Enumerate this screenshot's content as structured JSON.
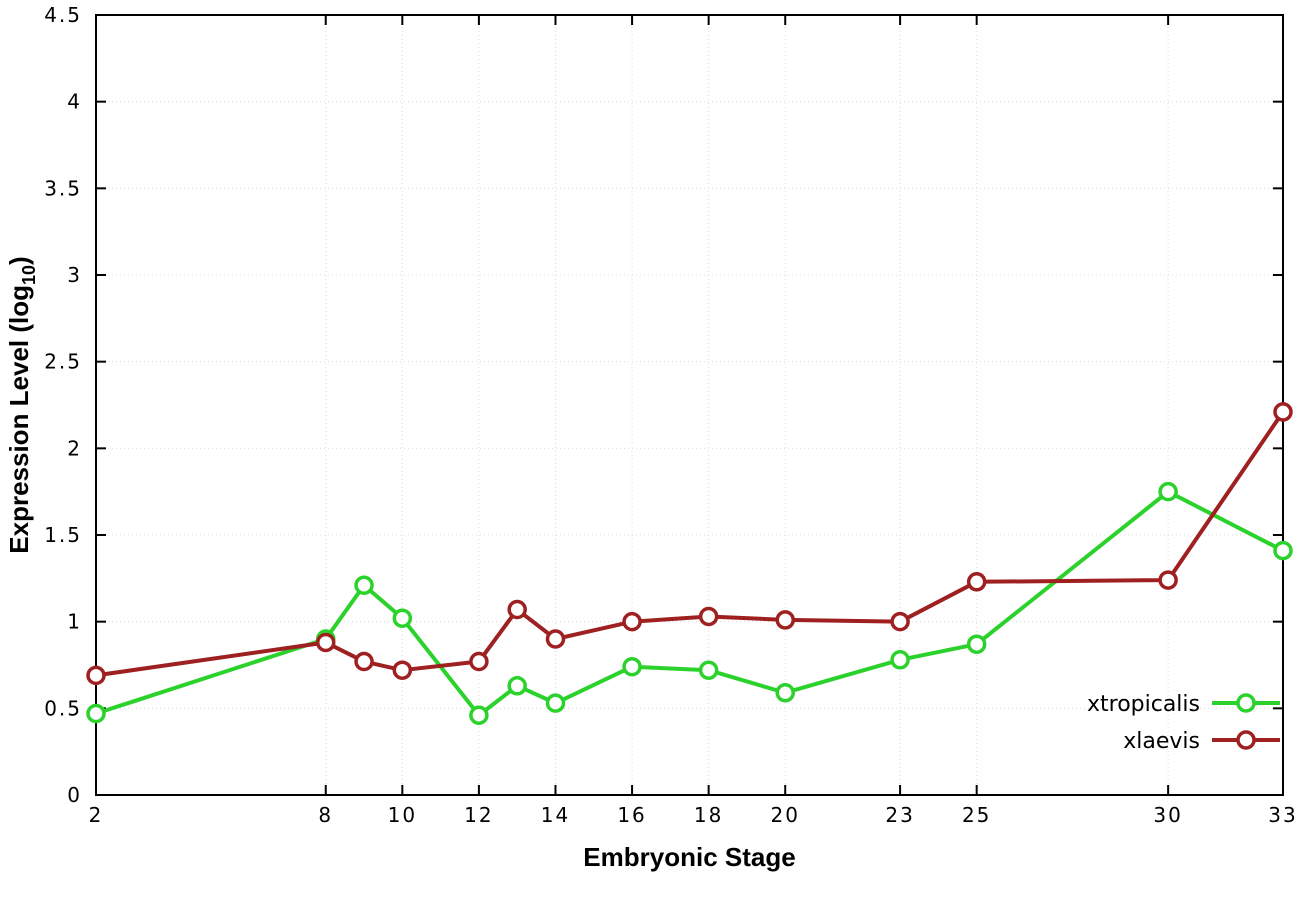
{
  "colors": {
    "background": "#ffffff",
    "border": "#000000",
    "grid": "#dcdcdc",
    "text": "#000000",
    "xtropicalis": "#2bd22b",
    "xlaevis": "#9e2020"
  },
  "chart_data": {
    "type": "line",
    "title": "",
    "xlabel": "Embryonic Stage",
    "ylabel_prefix": "Expression Level (log",
    "ylabel_sub": "10",
    "ylabel_suffix": ")",
    "xlim": [
      2,
      33
    ],
    "ylim": [
      0,
      4.5
    ],
    "xticks": [
      2,
      8,
      10,
      12,
      14,
      16,
      18,
      20,
      23,
      25,
      30,
      33
    ],
    "yticks": [
      0,
      0.5,
      1,
      1.5,
      2,
      2.5,
      3,
      3.5,
      4,
      4.5
    ],
    "ytick_labels": [
      "0",
      "0.5",
      "1",
      "1.5",
      "2",
      "2.5",
      "3",
      "3.5",
      "4",
      "4.5"
    ],
    "grid": true,
    "legend_position": "bottom-right",
    "x": [
      2,
      8,
      9,
      10,
      12,
      13,
      14,
      16,
      18,
      20,
      23,
      25,
      30,
      33
    ],
    "series": [
      {
        "name": "xtropicalis",
        "color": "#2bd22b",
        "values": [
          0.47,
          0.9,
          1.21,
          1.02,
          0.46,
          0.63,
          0.53,
          0.74,
          0.72,
          0.59,
          0.78,
          0.87,
          1.75,
          1.41
        ]
      },
      {
        "name": "xlaevis",
        "color": "#9e2020",
        "values": [
          0.69,
          0.88,
          0.77,
          0.72,
          0.77,
          1.07,
          0.9,
          1.0,
          1.03,
          1.01,
          1.0,
          1.23,
          1.24,
          2.21
        ]
      }
    ]
  }
}
